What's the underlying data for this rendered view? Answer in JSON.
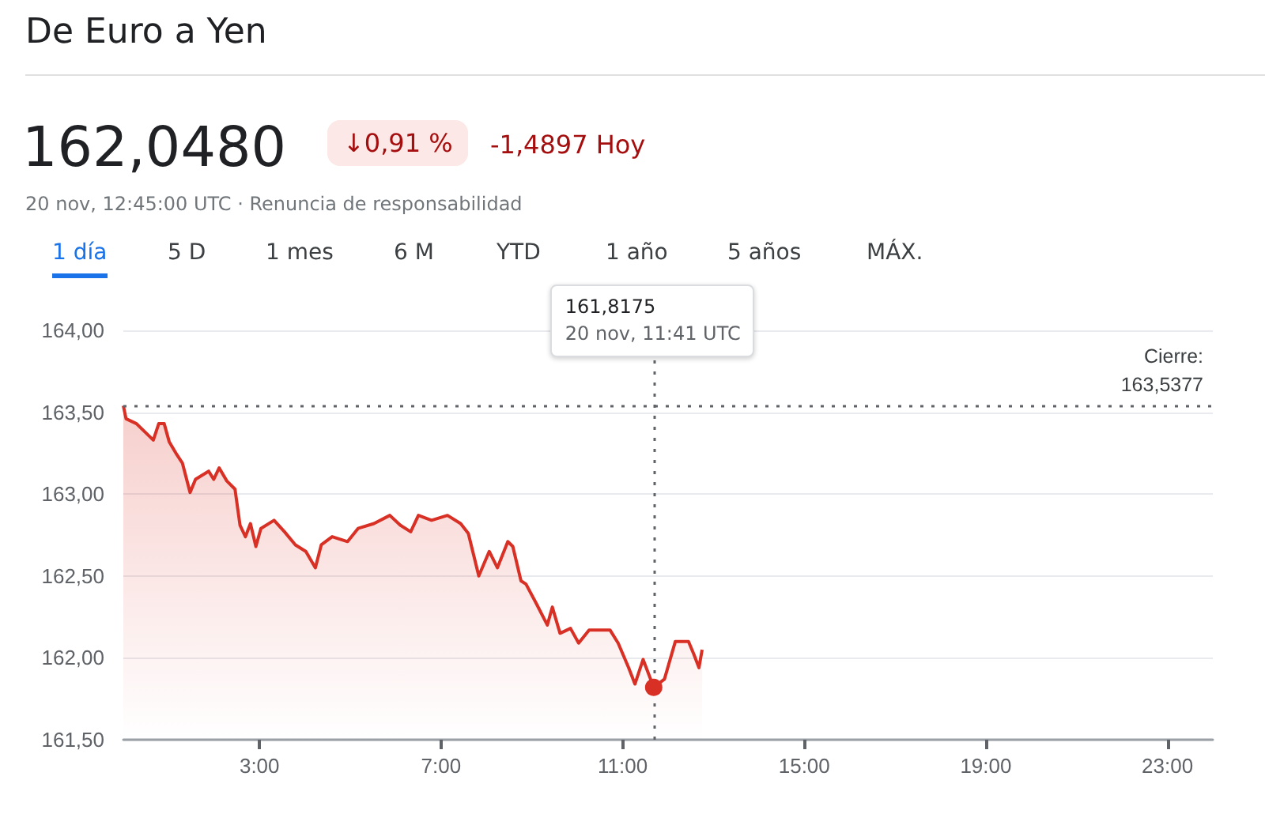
{
  "chart_data": {
    "type": "area",
    "title": "De Euro a Yen",
    "annotations": [
      "162,0480",
      "↓0,91 %",
      "-1,4897 Hoy",
      "20 nov, 12:45:00 UTC · Renuncia de responsabilidad",
      "1 día",
      "5 D",
      "1 mes",
      "6 M",
      "YTD",
      "1 año",
      "5 años",
      "MÁX.",
      "161,8175\n20 nov, 11:41 UTC"
    ],
    "series": [
      {
        "color": "#d93025",
        "x": [
          0,
          0.06,
          0.29,
          0.66,
          0.78,
          0.9,
          1.01,
          1.18,
          1.3,
          1.47,
          1.59,
          1.88,
          1.99,
          2.11,
          2.28,
          2.46,
          2.57,
          2.69,
          2.8,
          2.92,
          3.03,
          3.32,
          3.55,
          3.79,
          4.02,
          4.23,
          4.36,
          4.6,
          4.94,
          5.17,
          5.52,
          5.87,
          6.1,
          6.33,
          6.5,
          6.79,
          7.14,
          7.43,
          7.6,
          7.83,
          8.06,
          8.24,
          8.47,
          8.58,
          8.76,
          8.87,
          9.1,
          9.34,
          9.45,
          9.62,
          9.85,
          10.03,
          10.26,
          10.72,
          10.9,
          11.13,
          11.27,
          11.45,
          11.683,
          11.92,
          12.16,
          12.45,
          12.57,
          12.68,
          12.75
        ],
        "values": [
          163.54,
          163.46,
          163.43,
          163.33,
          163.43,
          163.43,
          163.32,
          163.24,
          163.19,
          163.01,
          163.09,
          163.14,
          163.09,
          163.16,
          163.08,
          163.03,
          162.81,
          162.74,
          162.82,
          162.68,
          162.79,
          162.84,
          162.77,
          162.69,
          162.65,
          162.55,
          162.69,
          162.74,
          162.71,
          162.79,
          162.82,
          162.87,
          162.81,
          162.77,
          162.87,
          162.84,
          162.87,
          162.82,
          162.76,
          162.5,
          162.65,
          162.55,
          162.71,
          162.68,
          162.47,
          162.45,
          162.33,
          162.2,
          162.31,
          162.15,
          162.18,
          162.09,
          162.17,
          162.17,
          162.09,
          161.94,
          161.84,
          161.99,
          161.82,
          161.87,
          162.1,
          162.1,
          162.02,
          161.94,
          162.05
        ]
      }
    ],
    "xlim": [
      0,
      24
    ],
    "xticks": [
      {
        "value": 3,
        "label": "3:00"
      },
      {
        "value": 7,
        "label": "7:00"
      },
      {
        "value": 11,
        "label": "11:00"
      },
      {
        "value": 15,
        "label": "15:00"
      },
      {
        "value": 19,
        "label": "19:00"
      },
      {
        "value": 23,
        "label": "23:00"
      }
    ],
    "ylim": [
      161.5,
      164
    ],
    "yticks": [
      {
        "value": 161.5,
        "label": "161,50"
      },
      {
        "value": 162,
        "label": "162,00"
      },
      {
        "value": 162.5,
        "label": "162,50"
      },
      {
        "value": 163,
        "label": "163,00"
      },
      {
        "value": 163.5,
        "label": "163,50"
      },
      {
        "value": 164,
        "label": "164,00"
      }
    ],
    "ref_lines": [
      {
        "axis": "y",
        "value": 163.5377,
        "label": "Cierre:\n163,5377",
        "color": "#5f6368",
        "line_style": "dotted"
      },
      {
        "axis": "x",
        "value": 11.683,
        "label": null,
        "color": "#5f6368",
        "line_style": "dotted"
      }
    ],
    "grid": "y",
    "marker": "none"
  }
}
